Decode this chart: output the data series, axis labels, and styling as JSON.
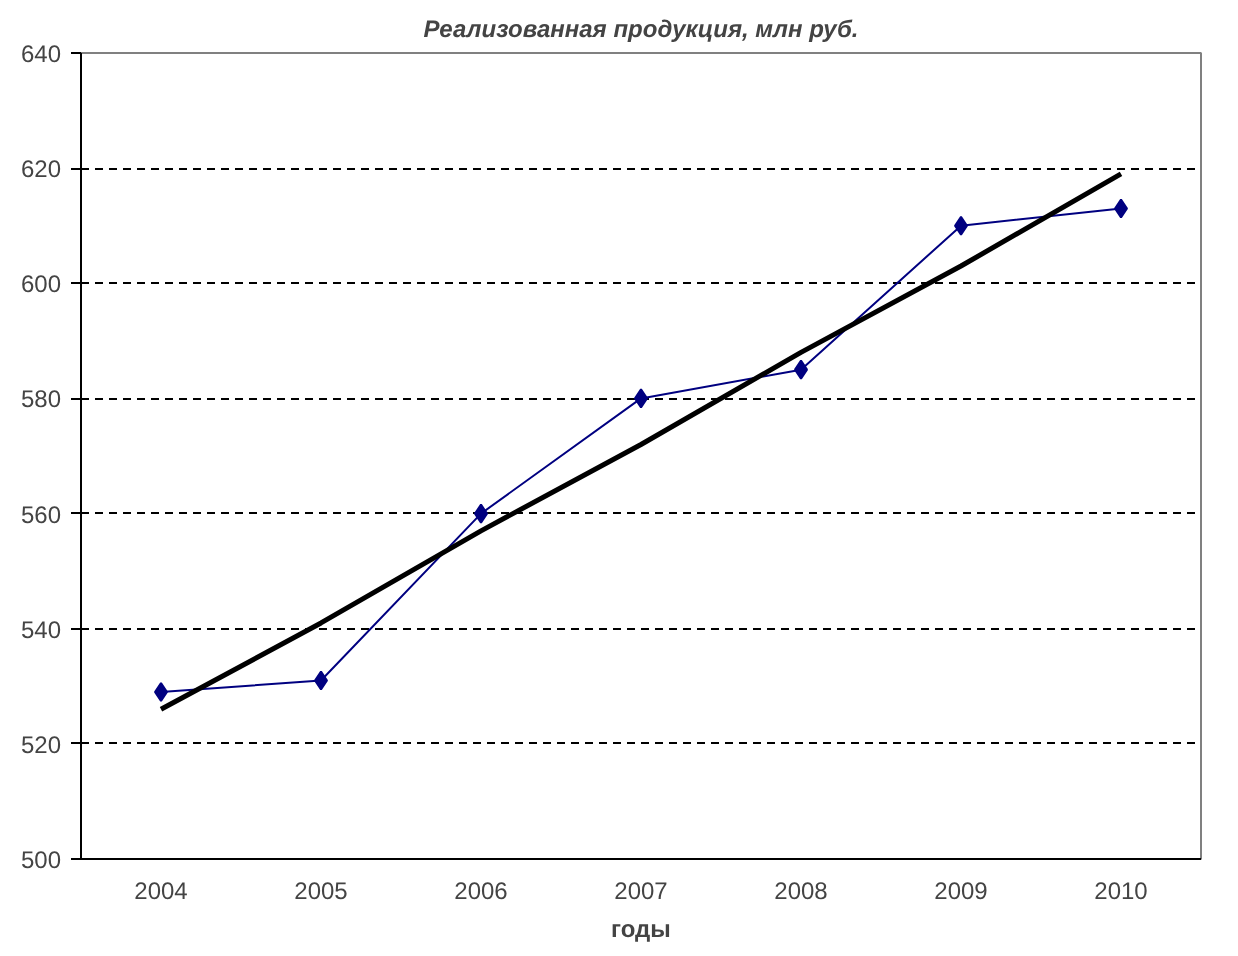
{
  "chart_data": {
    "type": "line",
    "title": "Реализованная продукция, млн руб.",
    "xlabel": "годы",
    "categories": [
      "2004",
      "2005",
      "2006",
      "2007",
      "2008",
      "2009",
      "2010"
    ],
    "series": [
      {
        "color": "#000080",
        "values": [
          529,
          531,
          560,
          580,
          585,
          610,
          613
        ],
        "marker": "diamond"
      },
      {
        "type": "line",
        "color": "#000000",
        "values": [
          526,
          541,
          557,
          572,
          588,
          603,
          619
        ],
        "marker": "none"
      }
    ],
    "ylim": [
      500,
      640
    ],
    "yticks": [
      500,
      520,
      540,
      560,
      580,
      600,
      620,
      640
    ],
    "grid": "y",
    "line_style": "solid"
  }
}
